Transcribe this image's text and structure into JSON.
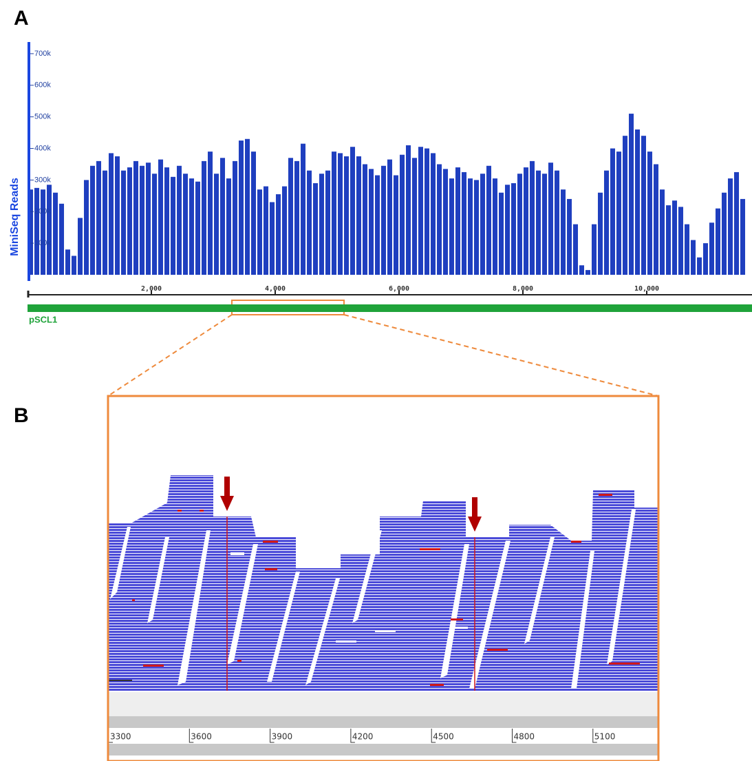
{
  "panels": {
    "a": "A",
    "b": "B"
  },
  "chart_data": {
    "type": "bar",
    "y_label": "MiniSeq Reads",
    "track": "pSCL1",
    "color": "#1f3fbf",
    "axis_color": "#1a46e0",
    "track_color": "#1fa33a",
    "xlim": [
      0,
      11600
    ],
    "ylim": [
      0,
      750000
    ],
    "xticks": [
      {
        "value": 2000,
        "label": "2,000"
      },
      {
        "value": 4000,
        "label": "4,000"
      },
      {
        "value": 6000,
        "label": "6,000"
      },
      {
        "value": 8000,
        "label": "8,000"
      },
      {
        "value": 10000,
        "label": "10,000"
      }
    ],
    "yticks": [
      {
        "value": 100000,
        "label": "100k"
      },
      {
        "value": 200000,
        "label": "200k"
      },
      {
        "value": 300000,
        "label": "300k"
      },
      {
        "value": 400000,
        "label": "400k"
      },
      {
        "value": 500000,
        "label": "500k"
      },
      {
        "value": 600000,
        "label": "600k"
      },
      {
        "value": 700000,
        "label": "700k"
      }
    ],
    "x": [
      50,
      150,
      250,
      350,
      450,
      550,
      650,
      750,
      850,
      950,
      1050,
      1150,
      1250,
      1350,
      1450,
      1550,
      1650,
      1750,
      1850,
      1950,
      2050,
      2150,
      2250,
      2350,
      2450,
      2550,
      2650,
      2750,
      2850,
      2950,
      3050,
      3150,
      3250,
      3350,
      3450,
      3550,
      3650,
      3750,
      3850,
      3950,
      4050,
      4150,
      4250,
      4350,
      4450,
      4550,
      4650,
      4750,
      4850,
      4950,
      5050,
      5150,
      5250,
      5350,
      5450,
      5550,
      5650,
      5750,
      5850,
      5950,
      6050,
      6150,
      6250,
      6350,
      6450,
      6550,
      6650,
      6750,
      6850,
      6950,
      7050,
      7150,
      7250,
      7350,
      7450,
      7550,
      7650,
      7750,
      7850,
      7950,
      8050,
      8150,
      8250,
      8350,
      8450,
      8550,
      8650,
      8750,
      8850,
      8950,
      9050,
      9150,
      9250,
      9350,
      9450,
      9550,
      9650,
      9750,
      9850,
      9950,
      10050,
      10150,
      10250,
      10350,
      10450,
      10550,
      10650,
      10750,
      10850,
      10950,
      11050,
      11150,
      11250,
      11350,
      11450,
      11550
    ],
    "values": [
      270000,
      275000,
      270000,
      285000,
      260000,
      225000,
      80000,
      60000,
      180000,
      300000,
      345000,
      360000,
      330000,
      385000,
      375000,
      330000,
      340000,
      360000,
      345000,
      355000,
      320000,
      365000,
      340000,
      310000,
      345000,
      320000,
      305000,
      295000,
      360000,
      390000,
      320000,
      370000,
      305000,
      360000,
      425000,
      430000,
      390000,
      270000,
      280000,
      230000,
      255000,
      280000,
      370000,
      360000,
      415000,
      330000,
      290000,
      320000,
      330000,
      390000,
      385000,
      375000,
      405000,
      375000,
      350000,
      335000,
      315000,
      345000,
      365000,
      315000,
      380000,
      410000,
      370000,
      405000,
      400000,
      385000,
      350000,
      335000,
      305000,
      340000,
      325000,
      305000,
      300000,
      320000,
      345000,
      305000,
      260000,
      285000,
      290000,
      320000,
      340000,
      360000,
      330000,
      320000,
      355000,
      330000,
      270000,
      240000,
      160000,
      30000,
      15000,
      160000,
      260000,
      330000,
      400000,
      390000,
      440000,
      510000,
      460000,
      440000,
      390000,
      350000,
      270000,
      220000,
      235000,
      215000,
      160000,
      110000,
      55000,
      100000,
      165000,
      210000,
      260000,
      305000,
      325000,
      240000
    ]
  },
  "alignment_view": {
    "ruler": [
      3300,
      3600,
      3900,
      4200,
      4500,
      4800,
      5100
    ]
  }
}
